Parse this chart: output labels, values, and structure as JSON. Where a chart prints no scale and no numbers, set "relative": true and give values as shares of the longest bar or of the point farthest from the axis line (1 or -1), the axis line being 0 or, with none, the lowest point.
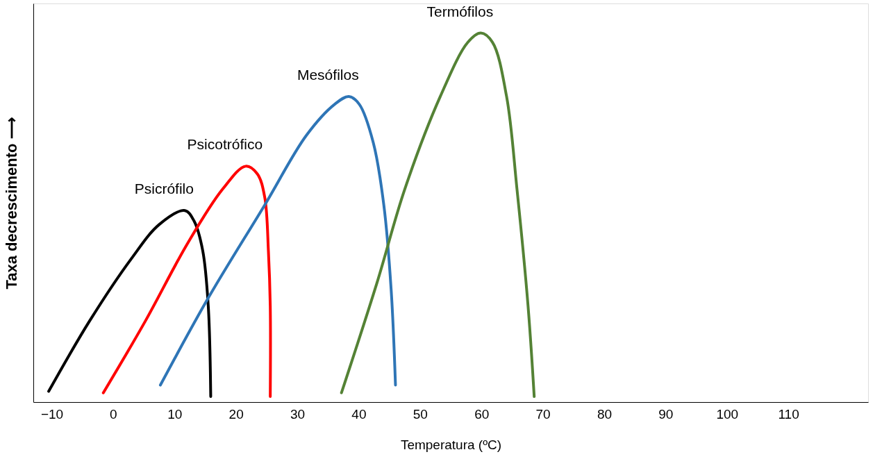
{
  "chart_data": {
    "type": "line",
    "relative": true,
    "xlabel": "Temperatura (ºC)",
    "ylabel": "Taxa decrescimento ⟶",
    "xlim": [
      -13,
      123
    ],
    "xticks": [
      -10,
      0,
      10,
      20,
      30,
      40,
      50,
      60,
      70,
      80,
      90,
      100,
      110
    ],
    "grid": false,
    "legend": false,
    "marker": "none",
    "line_style": "solid",
    "series": [
      {
        "name": "Psicrófilo",
        "color": "#000000",
        "x": [
          -10.5,
          -3.9,
          2.9,
          7.5,
          11.7,
          13.2,
          14.6,
          15.5,
          15.9
        ],
        "values": [
          0.029,
          0.218,
          0.387,
          0.481,
          0.519,
          0.49,
          0.41,
          0.26,
          0.015
        ]
      },
      {
        "name": "Psicotrófico",
        "color": "#ff0000",
        "x": [
          -1.6,
          5.2,
          12.1,
          17.8,
          21.6,
          23.5,
          24.7,
          25.3,
          25.6,
          25.6
        ],
        "values": [
          0.025,
          0.218,
          0.429,
          0.576,
          0.639,
          0.618,
          0.555,
          0.408,
          0.26,
          0.015
        ]
      },
      {
        "name": "Mesófilos",
        "color": "#2e75b6",
        "x": [
          7.7,
          15.5,
          24.7,
          31.5,
          36.1,
          38.4,
          40.1,
          42.4,
          44.1,
          45.3,
          46.0
        ],
        "values": [
          0.046,
          0.282,
          0.534,
          0.723,
          0.807,
          0.828,
          0.807,
          0.702,
          0.534,
          0.303,
          0.046
        ]
      },
      {
        "name": "Termófilos",
        "color": "#548235",
        "x": [
          37.2,
          43.0,
          47.5,
          53.3,
          57.8,
          59.9,
          61.8,
          64.1,
          65.8,
          67.6,
          68.6
        ],
        "values": [
          0.025,
          0.324,
          0.576,
          0.828,
          0.975,
          1.0,
          0.975,
          0.828,
          0.576,
          0.26,
          0.015
        ]
      }
    ]
  }
}
